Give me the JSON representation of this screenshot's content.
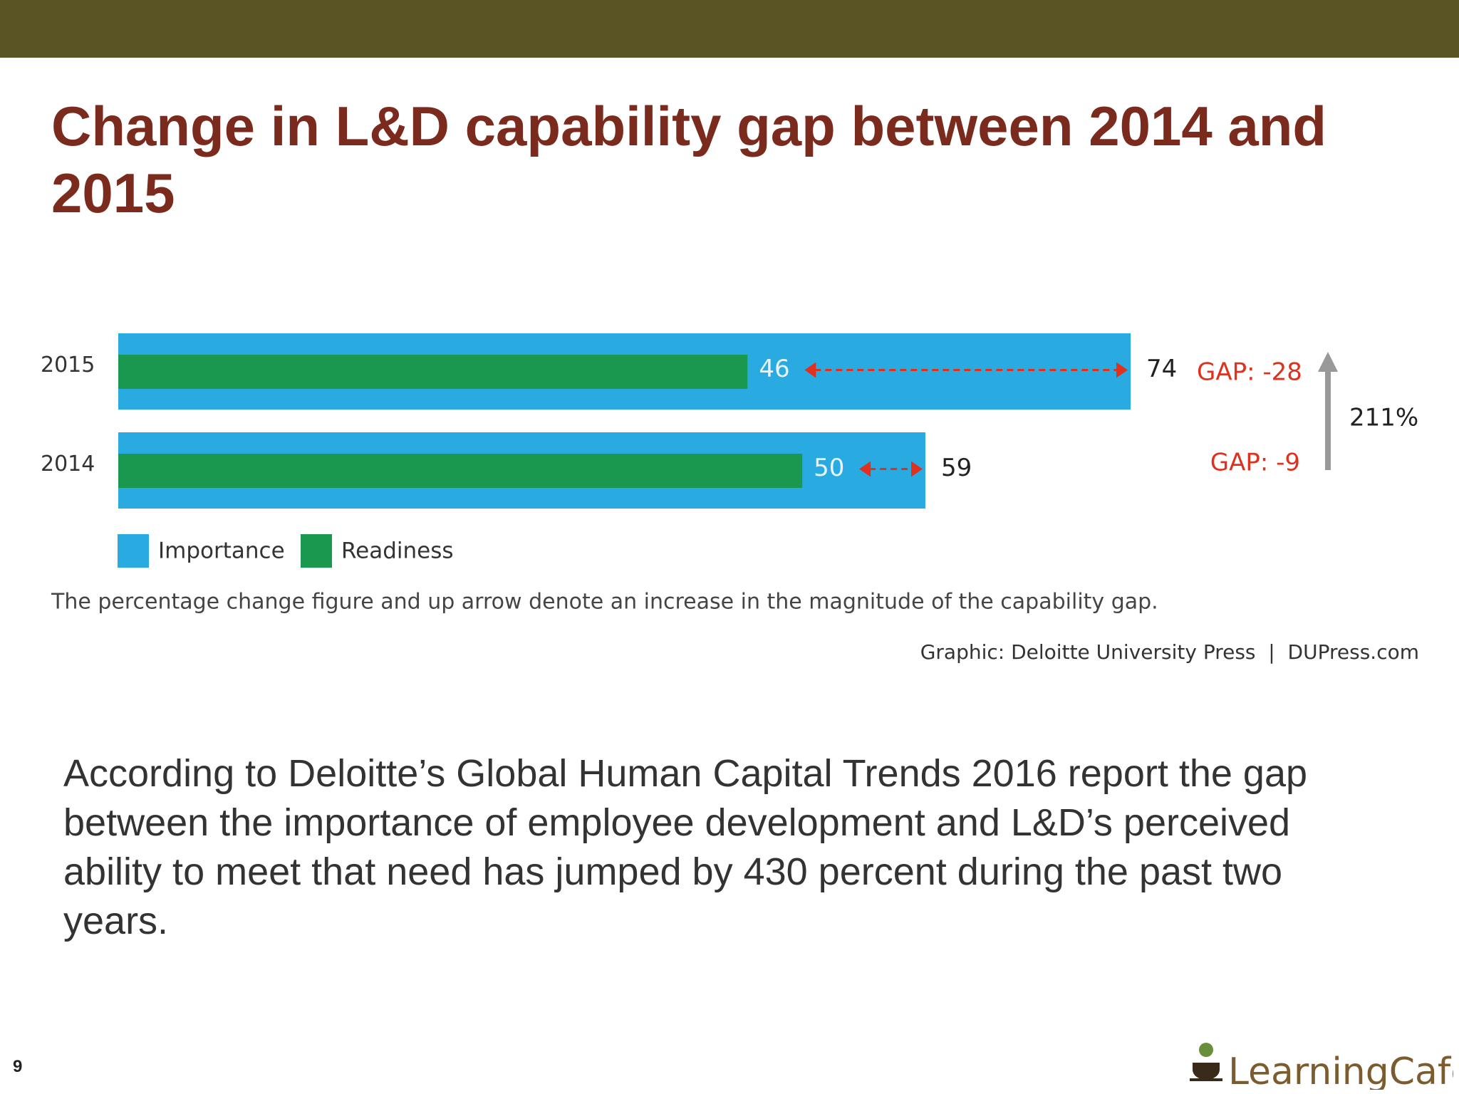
{
  "chart_data": {
    "type": "bar",
    "orientation": "horizontal",
    "title": "Change in L&D capability gap between 2014 and 2015",
    "categories": [
      "2015",
      "2014"
    ],
    "series": [
      {
        "name": "Importance",
        "color": "#29abe2",
        "values": [
          74,
          59
        ]
      },
      {
        "name": "Readiness",
        "color": "#1a9850",
        "values": [
          46,
          50
        ]
      }
    ],
    "xlim": [
      0,
      74
    ],
    "annotations": [
      "GAP: -28",
      "GAP: -9",
      "211%"
    ],
    "note": "The percentage change figure and up arrow denote an increase in the magnitude of the capability gap.",
    "source": "Graphic: Deloitte University Press  |  DUPress.com"
  },
  "body": "According to Deloitte’s Global Human Capital Trends 2016 report the gap between the importance of employee development and L&D’s perceived ability to meet that need has jumped by 430 percent during the past two years.",
  "page_number": "9",
  "logo": "LearningCafe"
}
